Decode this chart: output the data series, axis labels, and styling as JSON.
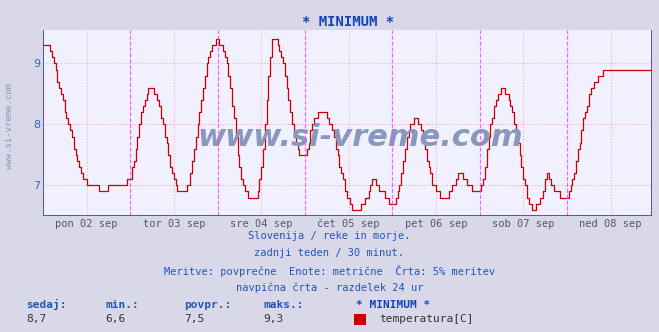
{
  "title": "* MINIMUM *",
  "title_color": "#1144bb",
  "title_fontsize": 10,
  "bg_color": "#d8d8e8",
  "plot_bg_color": "#f0f0ff",
  "line_color": "#cc0000",
  "line_width": 1.0,
  "ylim_min": 6.5,
  "ylim_max": 9.55,
  "yticks": [
    7,
    8,
    9
  ],
  "ylabel_color": "#3366bb",
  "grid_color": "#ffaaaa",
  "grid_style": ":",
  "vline_color": "#ff44ff",
  "vline_style": "--",
  "border_line_color": "#3333cc",
  "xlabel_color": "#555577",
  "xlabel_fontsize": 7.5,
  "pts_per_day": 48,
  "n_days": 7,
  "day_labels": [
    "pon 02 sep",
    "tor 03 sep",
    "sre 04 sep",
    "čet 05 sep",
    "pet 06 sep",
    "sob 07 sep",
    "ned 08 sep"
  ],
  "footer_lines": [
    "Slovenija / reke in morje.",
    "zadnji teden / 30 minut.",
    "Meritve: povprečne  Enote: metrične  Črta: 5% meritev",
    "navpična črta - razdelek 24 ur"
  ],
  "footer_color": "#2255bb",
  "footer_fontsize": 7.5,
  "stats_labels": [
    "sedaj:",
    "min.:",
    "povpr.:",
    "maks.:"
  ],
  "stats_values": [
    "8,7",
    "6,6",
    "7,5",
    "9,3"
  ],
  "stats_color": "#2255bb",
  "stats_fontsize": 8,
  "legend_label": "* MINIMUM *",
  "legend_series": "temperatura[C]",
  "legend_color": "#cc0000",
  "watermark": "www.si-vreme.com",
  "watermark_color": "#8899bb",
  "watermark_fontsize": 22,
  "side_label": "www.si-vreme.com",
  "side_label_color": "#8899bb",
  "side_label_fontsize": 6.5
}
